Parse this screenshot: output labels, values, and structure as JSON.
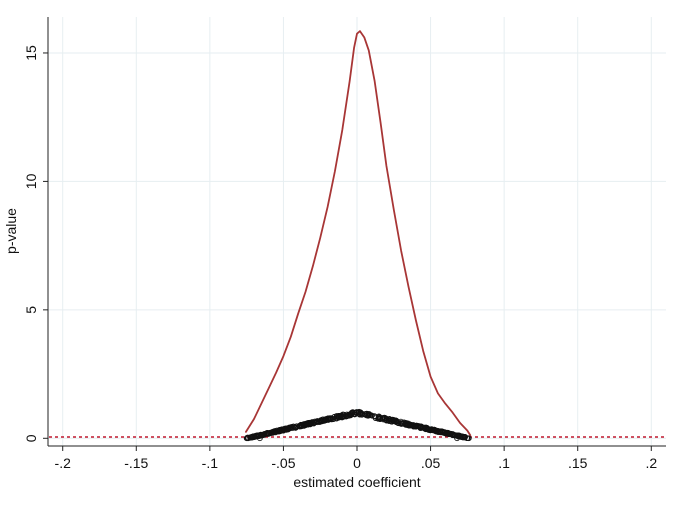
{
  "chart_data": {
    "type": "line",
    "title": "",
    "xlabel": "estimated  coefficient",
    "ylabel": "p-value",
    "xlim": [
      -0.21,
      0.21
    ],
    "ylim": [
      -0.3,
      16.4
    ],
    "x_ticks": [
      {
        "value": -0.2,
        "label": "-.2"
      },
      {
        "value": -0.15,
        "label": "-.15"
      },
      {
        "value": -0.1,
        "label": "-.1"
      },
      {
        "value": -0.05,
        "label": "-.05"
      },
      {
        "value": 0,
        "label": "0"
      },
      {
        "value": 0.05,
        "label": ".05"
      },
      {
        "value": 0.1,
        "label": ".1"
      },
      {
        "value": 0.15,
        "label": ".15"
      },
      {
        "value": 0.2,
        "label": ".2"
      }
    ],
    "y_ticks": [
      {
        "value": 0,
        "label": "0"
      },
      {
        "value": 5,
        "label": "5"
      },
      {
        "value": 10,
        "label": "10"
      },
      {
        "value": 15,
        "label": "15"
      }
    ],
    "grid": true,
    "reference_line": {
      "y": 0.05,
      "style": "dotted",
      "color": "#c0182e"
    },
    "series": [
      {
        "kind": "line",
        "color": "#a83636",
        "points": [
          [
            -0.0755,
            0.25
          ],
          [
            -0.07,
            0.75
          ],
          [
            -0.065,
            1.35
          ],
          [
            -0.06,
            1.95
          ],
          [
            -0.055,
            2.55
          ],
          [
            -0.05,
            3.2
          ],
          [
            -0.045,
            3.95
          ],
          [
            -0.04,
            4.85
          ],
          [
            -0.035,
            5.7
          ],
          [
            -0.03,
            6.7
          ],
          [
            -0.025,
            7.8
          ],
          [
            -0.02,
            9.0
          ],
          [
            -0.015,
            10.4
          ],
          [
            -0.01,
            12.0
          ],
          [
            -0.005,
            13.9
          ],
          [
            -0.002,
            15.2
          ],
          [
            0.0,
            15.75
          ],
          [
            0.002,
            15.85
          ],
          [
            0.005,
            15.6
          ],
          [
            0.008,
            15.1
          ],
          [
            0.012,
            13.9
          ],
          [
            0.016,
            12.3
          ],
          [
            0.02,
            10.6
          ],
          [
            0.025,
            8.9
          ],
          [
            0.03,
            7.3
          ],
          [
            0.035,
            5.9
          ],
          [
            0.04,
            4.6
          ],
          [
            0.045,
            3.4
          ],
          [
            0.05,
            2.4
          ],
          [
            0.055,
            1.75
          ],
          [
            0.06,
            1.35
          ],
          [
            0.065,
            1.0
          ],
          [
            0.07,
            0.6
          ],
          [
            0.075,
            0.3
          ],
          [
            0.077,
            0.12
          ]
        ]
      },
      {
        "kind": "scatter",
        "color": "#111111",
        "shape": "hollow-circle",
        "peak": [
          0.0,
          1.0
        ],
        "left_end": [
          -0.075,
          0.0
        ],
        "right_end": [
          0.076,
          0.0
        ],
        "spread": 0.12,
        "count": 520
      }
    ]
  }
}
